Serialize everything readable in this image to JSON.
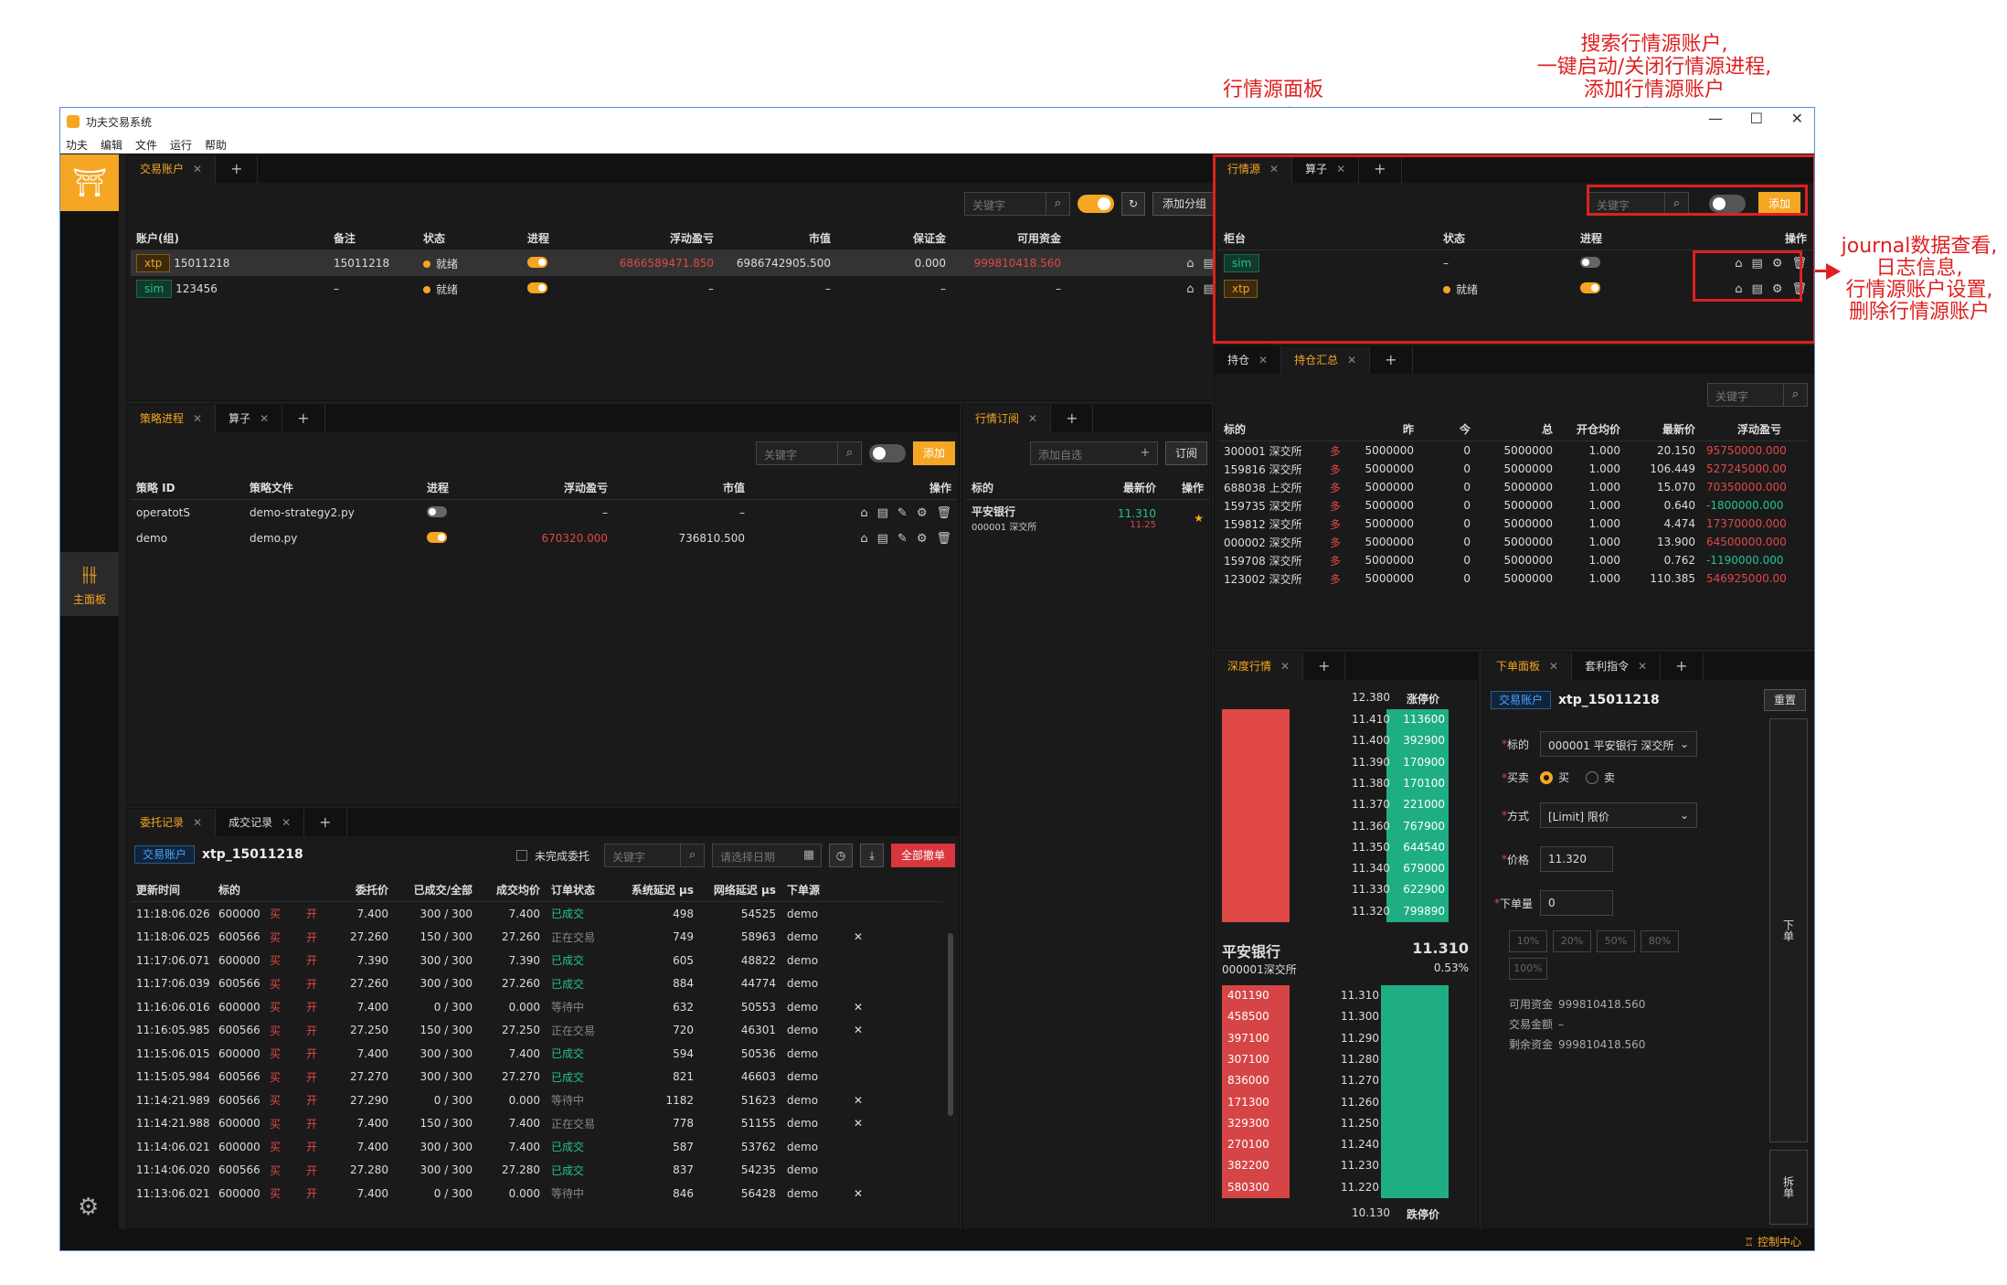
{
  "window": {
    "title": "功夫交易系统",
    "minimize": "—",
    "maximize": "☐",
    "close": "✕"
  },
  "menu": [
    "功夫",
    "编辑",
    "文件",
    "运行",
    "帮助"
  ],
  "sidebar": {
    "main_label": "主面板"
  },
  "statusbar": {
    "control_center": "控制中心"
  },
  "annotations": {
    "md_panel": "行情源面板",
    "search": [
      "搜索行情源账户,",
      "一键启动/关闭行情源进程,",
      "添加行情源账户"
    ],
    "journal": [
      "journal数据查看,",
      "日志信息,",
      "行情源账户设置,",
      "删除行情源账户"
    ]
  },
  "accounts": {
    "tab": "交易账户",
    "search_placeholder": "关键字",
    "add_group": "添加分组",
    "add": "添加",
    "headers": [
      "账户(组)",
      "备注",
      "状态",
      "进程",
      "浮动盈亏",
      "市值",
      "保证金",
      "可用资金",
      "操作"
    ],
    "rows": [
      {
        "tag": "xtp",
        "id": "15011218",
        "note": "15011218",
        "status": "就绪",
        "pnl": "6866589471.850",
        "mv": "6986742905.500",
        "margin": "0.000",
        "avail": "999810418.560"
      },
      {
        "tag": "sim",
        "id": "123456",
        "note": "–",
        "status": "就绪",
        "pnl": "–",
        "mv": "–",
        "margin": "–",
        "avail": "–"
      }
    ]
  },
  "md": {
    "tabs": [
      "行情源",
      "算子"
    ],
    "search_placeholder": "关键字",
    "add": "添加",
    "headers": [
      "柜台",
      "状态",
      "进程",
      "操作"
    ],
    "rows": [
      {
        "tag": "sim",
        "status": "–"
      },
      {
        "tag": "xtp",
        "status": "就绪"
      }
    ]
  },
  "strategy": {
    "tabs": [
      "策略进程",
      "算子"
    ],
    "search_placeholder": "关键字",
    "add": "添加",
    "headers": [
      "策略 ID",
      "策略文件",
      "进程",
      "浮动盈亏",
      "市值",
      "操作"
    ],
    "rows": [
      {
        "id": "operatotS",
        "file": "demo-strategy2.py",
        "pnl": "–",
        "mv": "–"
      },
      {
        "id": "demo",
        "file": "demo.py",
        "pnl": "670320.000",
        "mv": "736810.500"
      }
    ]
  },
  "subscription": {
    "tab": "行情订阅",
    "placeholder": "添加自选",
    "subscribe": "订阅",
    "headers": [
      "标的",
      "最新价",
      "操作"
    ],
    "rows": [
      {
        "name": "平安银行",
        "code": "000001 深交所",
        "price": "11.310",
        "chg": "11.25"
      }
    ]
  },
  "positions": {
    "tabs": [
      "持仓",
      "持仓汇总"
    ],
    "search_placeholder": "关键字",
    "headers": [
      "标的",
      "昨",
      "今",
      "总",
      "开仓均价",
      "最新价",
      "浮动盈亏"
    ],
    "rows": [
      {
        "code": "300001 深交所",
        "y": "5000000",
        "t": "0",
        "total": "5000000",
        "open": "1.000",
        "last": "20.150",
        "pnl": "95750000.000",
        "neg": false
      },
      {
        "code": "159816 深交所",
        "y": "5000000",
        "t": "0",
        "total": "5000000",
        "open": "1.000",
        "last": "106.449",
        "pnl": "527245000.000",
        "neg": false
      },
      {
        "code": "688038 上交所",
        "y": "5000000",
        "t": "0",
        "total": "5000000",
        "open": "1.000",
        "last": "15.070",
        "pnl": "70350000.000",
        "neg": false
      },
      {
        "code": "159735 深交所",
        "y": "5000000",
        "t": "0",
        "total": "5000000",
        "open": "1.000",
        "last": "0.640",
        "pnl": "-1800000.000",
        "neg": true
      },
      {
        "code": "159812 深交所",
        "y": "5000000",
        "t": "0",
        "total": "5000000",
        "open": "1.000",
        "last": "4.474",
        "pnl": "17370000.000",
        "neg": false
      },
      {
        "code": "000002 深交所",
        "y": "5000000",
        "t": "0",
        "total": "5000000",
        "open": "1.000",
        "last": "13.900",
        "pnl": "64500000.000",
        "neg": false
      },
      {
        "code": "159708 深交所",
        "y": "5000000",
        "t": "0",
        "total": "5000000",
        "open": "1.000",
        "last": "0.762",
        "pnl": "-1190000.000",
        "neg": true
      },
      {
        "code": "123002 深交所",
        "y": "5000000",
        "t": "0",
        "total": "5000000",
        "open": "1.000",
        "last": "110.385",
        "pnl": "546925000.000",
        "neg": false
      }
    ],
    "side": "多"
  },
  "orderbook": {
    "tab": "深度行情",
    "limit_up_label": "涨停价",
    "limit_down_label": "跌停价",
    "limit_up_price": "12.380",
    "limit_down_price": "10.130",
    "name": "平安银行",
    "code": "000001深交所",
    "last": "11.310",
    "change": "0.53%",
    "asks": [
      {
        "price": "11.410",
        "vol": "113600"
      },
      {
        "price": "11.400",
        "vol": "392900"
      },
      {
        "price": "11.390",
        "vol": "170900"
      },
      {
        "price": "11.380",
        "vol": "170100"
      },
      {
        "price": "11.370",
        "vol": "221000"
      },
      {
        "price": "11.360",
        "vol": "767900"
      },
      {
        "price": "11.350",
        "vol": "644540"
      },
      {
        "price": "11.340",
        "vol": "679000"
      },
      {
        "price": "11.330",
        "vol": "622900"
      },
      {
        "price": "11.320",
        "vol": "799890"
      }
    ],
    "bids": [
      {
        "price": "11.310",
        "vol": "401190"
      },
      {
        "price": "11.300",
        "vol": "458500"
      },
      {
        "price": "11.290",
        "vol": "397100"
      },
      {
        "price": "11.280",
        "vol": "307100"
      },
      {
        "price": "11.270",
        "vol": "836000"
      },
      {
        "price": "11.260",
        "vol": "171300"
      },
      {
        "price": "11.250",
        "vol": "329300"
      },
      {
        "price": "11.240",
        "vol": "270100"
      },
      {
        "price": "11.230",
        "vol": "382200"
      },
      {
        "price": "11.220",
        "vol": "580300"
      }
    ]
  },
  "order_entry": {
    "tabs": [
      "下单面板",
      "套利指令"
    ],
    "account_tag": "交易账户",
    "account": "xtp_15011218",
    "reset": "重置",
    "labels": {
      "instrument": "标的",
      "side": "买卖",
      "type": "方式",
      "price": "价格",
      "volume": "下单量"
    },
    "instrument": "000001 平安银行 深交所",
    "buy": "买",
    "sell": "卖",
    "order_type": "[Limit] 限价",
    "price": "11.320",
    "volume": "0",
    "pcts": [
      "10%",
      "20%",
      "50%",
      "80%",
      "100%"
    ],
    "avail_label": "可用资金",
    "avail": "999810418.560",
    "amount_label": "交易金额",
    "amount": "–",
    "remain_label": "剩余资金",
    "remain": "999810418.560",
    "place": "下单",
    "split": "拆单"
  },
  "orders": {
    "tabs": [
      "委托记录",
      "成交记录"
    ],
    "account_tag": "交易账户",
    "account": "xtp_15011218",
    "pending_only": "未完成委托",
    "search_placeholder": "关键字",
    "date_placeholder": "请选择日期",
    "cancel_all": "全部撤单",
    "headers": [
      "更新时间",
      "标的",
      "",
      "",
      "委托价",
      "已成交/全部",
      "成交均价",
      "订单状态",
      "系统延迟 μs",
      "网络延迟 μs",
      "下单源",
      ""
    ],
    "rows": [
      {
        "time": "11:18:06.026",
        "code": "600000",
        "side": "买",
        "off": "开",
        "price": "7.400",
        "filled": "300 / 300",
        "avg": "7.400",
        "status": "已成交",
        "st": "done",
        "sys": "498",
        "net": "54525",
        "src": "demo",
        "x": ""
      },
      {
        "time": "11:18:06.025",
        "code": "600566",
        "side": "买",
        "off": "开",
        "price": "27.260",
        "filled": "150 / 300",
        "avg": "27.260",
        "status": "正在交易",
        "st": "part",
        "sys": "749",
        "net": "58963",
        "src": "demo",
        "x": "✕"
      },
      {
        "time": "11:17:06.071",
        "code": "600000",
        "side": "买",
        "off": "开",
        "price": "7.390",
        "filled": "300 / 300",
        "avg": "7.390",
        "status": "已成交",
        "st": "done",
        "sys": "605",
        "net": "48822",
        "src": "demo",
        "x": ""
      },
      {
        "time": "11:17:06.039",
        "code": "600566",
        "side": "买",
        "off": "开",
        "price": "27.260",
        "filled": "300 / 300",
        "avg": "27.260",
        "status": "已成交",
        "st": "done",
        "sys": "884",
        "net": "44774",
        "src": "demo",
        "x": ""
      },
      {
        "time": "11:16:06.016",
        "code": "600000",
        "side": "买",
        "off": "开",
        "price": "7.400",
        "filled": "0 / 300",
        "avg": "0.000",
        "status": "等待中",
        "st": "wait",
        "sys": "632",
        "net": "50553",
        "src": "demo",
        "x": "✕"
      },
      {
        "time": "11:16:05.985",
        "code": "600566",
        "side": "买",
        "off": "开",
        "price": "27.250",
        "filled": "150 / 300",
        "avg": "27.250",
        "status": "正在交易",
        "st": "part",
        "sys": "720",
        "net": "46301",
        "src": "demo",
        "x": "✕"
      },
      {
        "time": "11:15:06.015",
        "code": "600000",
        "side": "买",
        "off": "开",
        "price": "7.400",
        "filled": "300 / 300",
        "avg": "7.400",
        "status": "已成交",
        "st": "done",
        "sys": "594",
        "net": "50536",
        "src": "demo",
        "x": ""
      },
      {
        "time": "11:15:05.984",
        "code": "600566",
        "side": "买",
        "off": "开",
        "price": "27.270",
        "filled": "300 / 300",
        "avg": "27.270",
        "status": "已成交",
        "st": "done",
        "sys": "821",
        "net": "46603",
        "src": "demo",
        "x": ""
      },
      {
        "time": "11:14:21.989",
        "code": "600566",
        "side": "买",
        "off": "开",
        "price": "27.290",
        "filled": "0 / 300",
        "avg": "0.000",
        "status": "等待中",
        "st": "wait",
        "sys": "1182",
        "net": "51623",
        "src": "demo",
        "x": "✕"
      },
      {
        "time": "11:14:21.988",
        "code": "600000",
        "side": "买",
        "off": "开",
        "price": "7.400",
        "filled": "150 / 300",
        "avg": "7.400",
        "status": "正在交易",
        "st": "part",
        "sys": "778",
        "net": "51155",
        "src": "demo",
        "x": "✕"
      },
      {
        "time": "11:14:06.021",
        "code": "600000",
        "side": "买",
        "off": "开",
        "price": "7.400",
        "filled": "300 / 300",
        "avg": "7.400",
        "status": "已成交",
        "st": "done",
        "sys": "587",
        "net": "53762",
        "src": "demo",
        "x": ""
      },
      {
        "time": "11:14:06.020",
        "code": "600566",
        "side": "买",
        "off": "开",
        "price": "27.280",
        "filled": "300 / 300",
        "avg": "27.280",
        "status": "已成交",
        "st": "done",
        "sys": "837",
        "net": "54235",
        "src": "demo",
        "x": ""
      },
      {
        "time": "11:13:06.021",
        "code": "600000",
        "side": "买",
        "off": "开",
        "price": "7.400",
        "filled": "0 / 300",
        "avg": "0.000",
        "status": "等待中",
        "st": "wait",
        "sys": "846",
        "net": "56428",
        "src": "demo",
        "x": "✕"
      }
    ]
  }
}
